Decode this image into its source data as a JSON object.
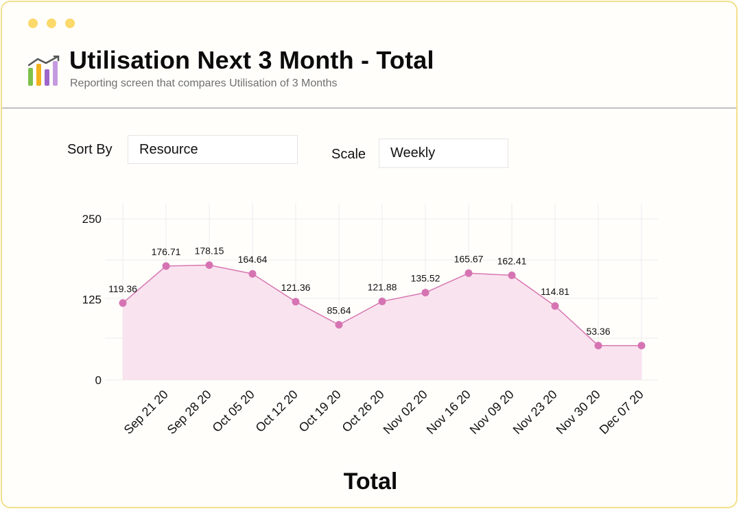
{
  "window": {
    "title": "Utilisation Next 3 Month - Total",
    "subtitle": "Reporting screen that compares Utilisation of 3 Months",
    "app_icon": "bar-chart-trend-icon",
    "colors": {
      "border": "#f3e08a",
      "dots": "#fbd96a"
    }
  },
  "controls": {
    "sort_by": {
      "label": "Sort By",
      "value": "Resource"
    },
    "scale": {
      "label": "Scale",
      "value": "Weekly"
    }
  },
  "chart_data": {
    "type": "area",
    "title": "Total",
    "categories": [
      "Sep 21 20",
      "Sep 28 20",
      "Oct 05 20",
      "Oct 12 20",
      "Oct 19 20",
      "Oct 26 20",
      "Nov 02 20",
      "Nov 16 20",
      "Nov 09 20",
      "Nov 23 20",
      "Nov 30 20",
      "Dec 07 20"
    ],
    "points": [
      {
        "value": 119.36,
        "label": "119.36"
      },
      {
        "value": 176.71,
        "label": "176.71"
      },
      {
        "value": 178.15,
        "label": "178.15"
      },
      {
        "value": 164.64,
        "label": "164.64"
      },
      {
        "value": 121.36,
        "label": "121.36"
      },
      {
        "value": 85.64,
        "label": "85.64"
      },
      {
        "value": 121.88,
        "label": "121.88"
      },
      {
        "value": 135.52,
        "label": "135.52"
      },
      {
        "value": 165.67,
        "label": "165.67"
      },
      {
        "value": 162.41,
        "label": "162.41"
      },
      {
        "value": 114.81,
        "label": "114.81"
      },
      {
        "value": 53.36,
        "label": "53.36"
      },
      {
        "value": 53.36,
        "label": ""
      }
    ],
    "y_ticks": [
      "250",
      "125",
      "0"
    ],
    "ylim": [
      0,
      250
    ],
    "grid": true,
    "colors": {
      "line": "#d777b0",
      "fill": "#f9e3ef",
      "marker": "#d674b3",
      "grid": "#ececec"
    }
  }
}
